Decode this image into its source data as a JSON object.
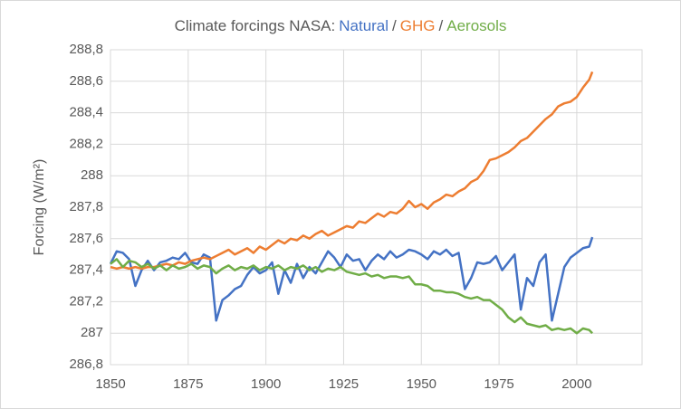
{
  "chart_data": {
    "type": "line",
    "title": "Climate forcings NASA:",
    "title_separator": "/",
    "y_label": "Forcing (W/m²)",
    "xlim": [
      1850,
      2021
    ],
    "xticks": [
      1850,
      1875,
      1900,
      1925,
      1950,
      1975,
      2000
    ],
    "ylim": [
      286.8,
      288.8
    ],
    "yticks": [
      {
        "value": 286.8,
        "label": "286,8"
      },
      287,
      {
        "value": 287.2,
        "label": "287,2"
      },
      {
        "value": 287.4,
        "label": "287,4"
      },
      {
        "value": 287.6,
        "label": "287,6"
      },
      {
        "value": 287.8,
        "label": "287,8"
      },
      288,
      {
        "value": 288.2,
        "label": "288,2"
      },
      {
        "value": 288.4,
        "label": "288,4"
      },
      {
        "value": 288.6,
        "label": "288,6"
      },
      {
        "value": 288.8,
        "label": "288,8"
      }
    ],
    "grid": true,
    "x": [
      1850,
      1852,
      1854,
      1856,
      1858,
      1860,
      1862,
      1864,
      1866,
      1868,
      1870,
      1872,
      1874,
      1876,
      1878,
      1880,
      1882,
      1884,
      1886,
      1888,
      1890,
      1892,
      1894,
      1896,
      1898,
      1900,
      1902,
      1904,
      1906,
      1908,
      1910,
      1912,
      1914,
      1916,
      1918,
      1920,
      1922,
      1924,
      1926,
      1928,
      1930,
      1932,
      1934,
      1936,
      1938,
      1940,
      1942,
      1944,
      1946,
      1948,
      1950,
      1952,
      1954,
      1956,
      1958,
      1960,
      1962,
      1964,
      1966,
      1968,
      1970,
      1972,
      1974,
      1976,
      1978,
      1980,
      1982,
      1984,
      1986,
      1988,
      1990,
      1992,
      1994,
      1996,
      1998,
      2000,
      2002,
      2004,
      2005
    ],
    "series": [
      {
        "name": "Natural",
        "color": "#4472c4",
        "values": [
          287.44,
          287.52,
          287.51,
          287.47,
          287.3,
          287.4,
          287.46,
          287.4,
          287.45,
          287.46,
          287.48,
          287.47,
          287.51,
          287.45,
          287.44,
          287.5,
          287.48,
          287.08,
          287.21,
          287.24,
          287.28,
          287.3,
          287.37,
          287.42,
          287.38,
          287.4,
          287.45,
          287.25,
          287.4,
          287.32,
          287.44,
          287.35,
          287.42,
          287.38,
          287.45,
          287.52,
          287.48,
          287.42,
          287.5,
          287.46,
          287.47,
          287.4,
          287.46,
          287.5,
          287.47,
          287.52,
          287.48,
          287.5,
          287.53,
          287.52,
          287.5,
          287.47,
          287.52,
          287.5,
          287.53,
          287.49,
          287.51,
          287.28,
          287.35,
          287.45,
          287.44,
          287.45,
          287.49,
          287.4,
          287.45,
          287.5,
          287.15,
          287.35,
          287.3,
          287.45,
          287.5,
          287.08,
          287.25,
          287.42,
          287.48,
          287.51,
          287.54,
          287.55,
          287.61
        ]
      },
      {
        "name": "GHG",
        "color": "#ed7d31",
        "values": [
          287.42,
          287.41,
          287.42,
          287.41,
          287.42,
          287.41,
          287.42,
          287.42,
          287.43,
          287.44,
          287.43,
          287.45,
          287.44,
          287.46,
          287.47,
          287.48,
          287.47,
          287.49,
          287.51,
          287.53,
          287.5,
          287.52,
          287.54,
          287.51,
          287.55,
          287.53,
          287.56,
          287.59,
          287.57,
          287.6,
          287.59,
          287.62,
          287.6,
          287.63,
          287.65,
          287.62,
          287.64,
          287.66,
          287.68,
          287.67,
          287.71,
          287.7,
          287.73,
          287.76,
          287.74,
          287.77,
          287.76,
          287.79,
          287.84,
          287.8,
          287.82,
          287.79,
          287.83,
          287.85,
          287.88,
          287.87,
          287.9,
          287.92,
          287.96,
          287.98,
          288.03,
          288.1,
          288.11,
          288.13,
          288.15,
          288.18,
          288.22,
          288.24,
          288.28,
          288.32,
          288.36,
          288.39,
          288.44,
          288.46,
          288.47,
          288.5,
          288.56,
          288.61,
          288.66
        ]
      },
      {
        "name": "Aerosols",
        "color": "#70ad47",
        "values": [
          287.44,
          287.47,
          287.42,
          287.46,
          287.45,
          287.42,
          287.44,
          287.41,
          287.43,
          287.4,
          287.43,
          287.41,
          287.42,
          287.44,
          287.41,
          287.43,
          287.42,
          287.38,
          287.41,
          287.43,
          287.4,
          287.42,
          287.41,
          287.43,
          287.4,
          287.42,
          287.41,
          287.43,
          287.4,
          287.42,
          287.41,
          287.43,
          287.4,
          287.42,
          287.39,
          287.41,
          287.4,
          287.42,
          287.39,
          287.38,
          287.37,
          287.38,
          287.36,
          287.37,
          287.35,
          287.36,
          287.36,
          287.35,
          287.36,
          287.31,
          287.31,
          287.3,
          287.27,
          287.27,
          287.26,
          287.26,
          287.25,
          287.23,
          287.22,
          287.23,
          287.21,
          287.21,
          287.18,
          287.15,
          287.1,
          287.07,
          287.1,
          287.06,
          287.05,
          287.04,
          287.05,
          287.02,
          287.03,
          287.02,
          287.03,
          287.0,
          287.03,
          287.02,
          287.0
        ]
      }
    ]
  }
}
